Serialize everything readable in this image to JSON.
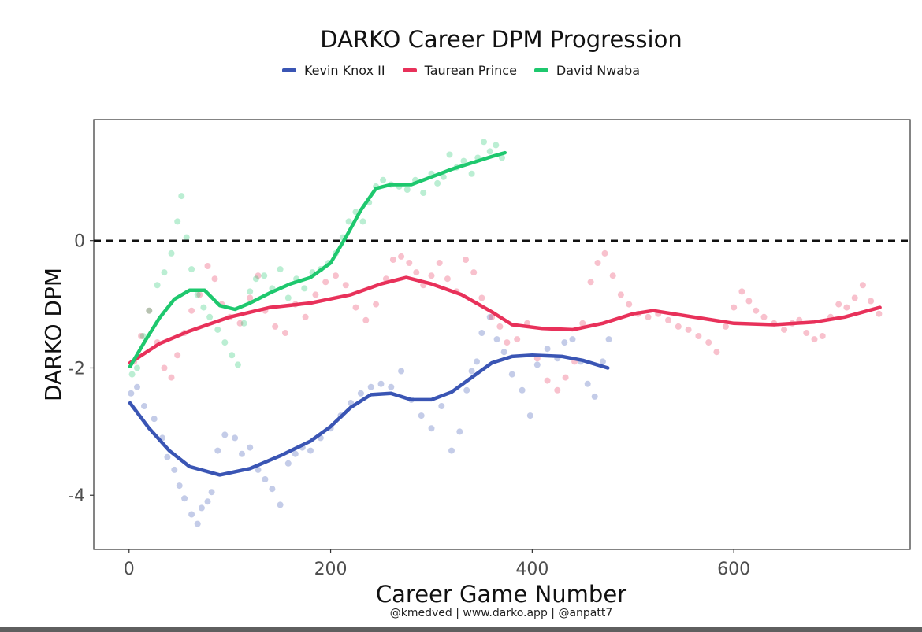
{
  "chart_data": {
    "type": "scatter",
    "title": "DARKO Career DPM Progression",
    "xlabel": "Career Game Number",
    "ylabel": "DARKO DPM",
    "caption": "@kmedved | www.darko.app | @anpatt7",
    "xlim": [
      -35,
      775
    ],
    "ylim": [
      -4.85,
      1.9
    ],
    "x_ticks": [
      0,
      200,
      400,
      600
    ],
    "x_tick_labels": [
      "0",
      "200",
      "400",
      "600"
    ],
    "y_ticks": [
      -4,
      -2,
      0
    ],
    "y_tick_labels": [
      "-4",
      "-2",
      "0"
    ],
    "reference_line": {
      "y": 0,
      "style": "dashed"
    },
    "legend_position": "top",
    "grid": false,
    "series": [
      {
        "name": "Kevin Knox II",
        "color": "#3a55b4",
        "trend": [
          [
            1,
            -2.55
          ],
          [
            20,
            -2.95
          ],
          [
            40,
            -3.3
          ],
          [
            60,
            -3.55
          ],
          [
            90,
            -3.68
          ],
          [
            120,
            -3.58
          ],
          [
            150,
            -3.38
          ],
          [
            180,
            -3.15
          ],
          [
            200,
            -2.92
          ],
          [
            220,
            -2.62
          ],
          [
            240,
            -2.42
          ],
          [
            260,
            -2.4
          ],
          [
            280,
            -2.5
          ],
          [
            300,
            -2.5
          ],
          [
            320,
            -2.38
          ],
          [
            340,
            -2.15
          ],
          [
            360,
            -1.92
          ],
          [
            380,
            -1.82
          ],
          [
            400,
            -1.8
          ],
          [
            430,
            -1.82
          ],
          [
            450,
            -1.88
          ],
          [
            475,
            -2.0
          ]
        ],
        "points": [
          [
            2,
            -2.4
          ],
          [
            8,
            -2.3
          ],
          [
            15,
            -2.6
          ],
          [
            25,
            -2.8
          ],
          [
            33,
            -3.1
          ],
          [
            38,
            -3.4
          ],
          [
            45,
            -3.6
          ],
          [
            50,
            -3.85
          ],
          [
            55,
            -4.05
          ],
          [
            62,
            -4.3
          ],
          [
            68,
            -4.45
          ],
          [
            72,
            -4.2
          ],
          [
            78,
            -4.1
          ],
          [
            82,
            -3.95
          ],
          [
            88,
            -3.3
          ],
          [
            95,
            -3.05
          ],
          [
            105,
            -3.1
          ],
          [
            112,
            -3.35
          ],
          [
            120,
            -3.25
          ],
          [
            128,
            -3.6
          ],
          [
            135,
            -3.75
          ],
          [
            142,
            -3.9
          ],
          [
            150,
            -4.15
          ],
          [
            158,
            -3.5
          ],
          [
            165,
            -3.35
          ],
          [
            172,
            -3.25
          ],
          [
            180,
            -3.3
          ],
          [
            190,
            -3.1
          ],
          [
            200,
            -2.95
          ],
          [
            210,
            -2.75
          ],
          [
            220,
            -2.55
          ],
          [
            230,
            -2.4
          ],
          [
            240,
            -2.3
          ],
          [
            250,
            -2.25
          ],
          [
            260,
            -2.3
          ],
          [
            270,
            -2.05
          ],
          [
            280,
            -2.5
          ],
          [
            290,
            -2.75
          ],
          [
            300,
            -2.95
          ],
          [
            310,
            -2.6
          ],
          [
            320,
            -3.3
          ],
          [
            328,
            -3.0
          ],
          [
            335,
            -2.35
          ],
          [
            340,
            -2.05
          ],
          [
            345,
            -1.9
          ],
          [
            350,
            -1.45
          ],
          [
            358,
            -1.2
          ],
          [
            365,
            -1.55
          ],
          [
            372,
            -1.75
          ],
          [
            380,
            -2.1
          ],
          [
            390,
            -2.35
          ],
          [
            398,
            -2.75
          ],
          [
            405,
            -1.95
          ],
          [
            415,
            -1.7
          ],
          [
            425,
            -1.85
          ],
          [
            432,
            -1.6
          ],
          [
            440,
            -1.55
          ],
          [
            448,
            -1.9
          ],
          [
            455,
            -2.25
          ],
          [
            462,
            -2.45
          ],
          [
            470,
            -1.9
          ],
          [
            476,
            -1.55
          ]
        ]
      },
      {
        "name": "Taurean Prince",
        "color": "#e8315a",
        "trend": [
          [
            1,
            -1.92
          ],
          [
            30,
            -1.62
          ],
          [
            60,
            -1.42
          ],
          [
            100,
            -1.2
          ],
          [
            140,
            -1.05
          ],
          [
            180,
            -0.98
          ],
          [
            220,
            -0.85
          ],
          [
            250,
            -0.68
          ],
          [
            275,
            -0.58
          ],
          [
            300,
            -0.68
          ],
          [
            330,
            -0.85
          ],
          [
            360,
            -1.12
          ],
          [
            380,
            -1.32
          ],
          [
            410,
            -1.38
          ],
          [
            440,
            -1.4
          ],
          [
            470,
            -1.3
          ],
          [
            500,
            -1.15
          ],
          [
            520,
            -1.1
          ],
          [
            560,
            -1.2
          ],
          [
            600,
            -1.3
          ],
          [
            640,
            -1.32
          ],
          [
            680,
            -1.28
          ],
          [
            710,
            -1.2
          ],
          [
            745,
            -1.05
          ]
        ],
        "points": [
          [
            5,
            -1.9
          ],
          [
            12,
            -1.5
          ],
          [
            20,
            -1.1
          ],
          [
            28,
            -1.6
          ],
          [
            35,
            -2.0
          ],
          [
            42,
            -2.15
          ],
          [
            48,
            -1.8
          ],
          [
            55,
            -1.45
          ],
          [
            62,
            -1.1
          ],
          [
            70,
            -0.85
          ],
          [
            78,
            -0.4
          ],
          [
            85,
            -0.6
          ],
          [
            92,
            -1.0
          ],
          [
            100,
            -1.2
          ],
          [
            110,
            -1.3
          ],
          [
            120,
            -0.9
          ],
          [
            128,
            -0.55
          ],
          [
            135,
            -1.1
          ],
          [
            145,
            -1.35
          ],
          [
            155,
            -1.45
          ],
          [
            165,
            -1.0
          ],
          [
            175,
            -1.2
          ],
          [
            185,
            -0.85
          ],
          [
            195,
            -0.65
          ],
          [
            205,
            -0.55
          ],
          [
            215,
            -0.7
          ],
          [
            225,
            -1.05
          ],
          [
            235,
            -1.25
          ],
          [
            245,
            -1.0
          ],
          [
            255,
            -0.6
          ],
          [
            262,
            -0.3
          ],
          [
            270,
            -0.25
          ],
          [
            278,
            -0.35
          ],
          [
            285,
            -0.5
          ],
          [
            292,
            -0.7
          ],
          [
            300,
            -0.55
          ],
          [
            308,
            -0.35
          ],
          [
            316,
            -0.6
          ],
          [
            325,
            -0.8
          ],
          [
            334,
            -0.3
          ],
          [
            342,
            -0.5
          ],
          [
            350,
            -0.9
          ],
          [
            360,
            -1.2
          ],
          [
            368,
            -1.35
          ],
          [
            375,
            -1.6
          ],
          [
            385,
            -1.55
          ],
          [
            395,
            -1.3
          ],
          [
            405,
            -1.85
          ],
          [
            415,
            -2.2
          ],
          [
            425,
            -2.35
          ],
          [
            433,
            -2.15
          ],
          [
            442,
            -1.9
          ],
          [
            450,
            -1.3
          ],
          [
            458,
            -0.65
          ],
          [
            465,
            -0.35
          ],
          [
            472,
            -0.2
          ],
          [
            480,
            -0.55
          ],
          [
            488,
            -0.85
          ],
          [
            496,
            -1.0
          ],
          [
            505,
            -1.15
          ],
          [
            515,
            -1.2
          ],
          [
            525,
            -1.15
          ],
          [
            535,
            -1.25
          ],
          [
            545,
            -1.35
          ],
          [
            555,
            -1.4
          ],
          [
            565,
            -1.5
          ],
          [
            575,
            -1.6
          ],
          [
            583,
            -1.75
          ],
          [
            592,
            -1.35
          ],
          [
            600,
            -1.05
          ],
          [
            608,
            -0.8
          ],
          [
            615,
            -0.95
          ],
          [
            622,
            -1.1
          ],
          [
            630,
            -1.2
          ],
          [
            640,
            -1.3
          ],
          [
            650,
            -1.4
          ],
          [
            658,
            -1.3
          ],
          [
            665,
            -1.25
          ],
          [
            672,
            -1.45
          ],
          [
            680,
            -1.55
          ],
          [
            688,
            -1.5
          ],
          [
            696,
            -1.2
          ],
          [
            704,
            -1.0
          ],
          [
            712,
            -1.05
          ],
          [
            720,
            -0.9
          ],
          [
            728,
            -0.7
          ],
          [
            736,
            -0.95
          ],
          [
            744,
            -1.15
          ]
        ]
      },
      {
        "name": "David Nwaba",
        "color": "#1ec86e",
        "trend": [
          [
            1,
            -1.98
          ],
          [
            15,
            -1.6
          ],
          [
            30,
            -1.22
          ],
          [
            45,
            -0.92
          ],
          [
            60,
            -0.78
          ],
          [
            75,
            -0.78
          ],
          [
            90,
            -1.02
          ],
          [
            105,
            -1.08
          ],
          [
            120,
            -0.98
          ],
          [
            140,
            -0.82
          ],
          [
            160,
            -0.68
          ],
          [
            180,
            -0.58
          ],
          [
            200,
            -0.35
          ],
          [
            215,
            0.05
          ],
          [
            230,
            0.48
          ],
          [
            245,
            0.82
          ],
          [
            260,
            0.88
          ],
          [
            280,
            0.88
          ],
          [
            300,
            1.0
          ],
          [
            320,
            1.12
          ],
          [
            340,
            1.22
          ],
          [
            360,
            1.32
          ],
          [
            373,
            1.38
          ]
        ],
        "points": [
          [
            3,
            -2.1
          ],
          [
            8,
            -2.0
          ],
          [
            14,
            -1.5
          ],
          [
            20,
            -1.1
          ],
          [
            28,
            -0.7
          ],
          [
            35,
            -0.5
          ],
          [
            42,
            -0.2
          ],
          [
            48,
            0.3
          ],
          [
            52,
            0.7
          ],
          [
            57,
            0.05
          ],
          [
            62,
            -0.45
          ],
          [
            68,
            -0.85
          ],
          [
            74,
            -1.05
          ],
          [
            80,
            -1.2
          ],
          [
            88,
            -1.4
          ],
          [
            95,
            -1.6
          ],
          [
            102,
            -1.8
          ],
          [
            108,
            -1.95
          ],
          [
            114,
            -1.3
          ],
          [
            120,
            -0.8
          ],
          [
            126,
            -0.6
          ],
          [
            134,
            -0.55
          ],
          [
            142,
            -0.75
          ],
          [
            150,
            -0.45
          ],
          [
            158,
            -0.9
          ],
          [
            166,
            -0.6
          ],
          [
            174,
            -0.75
          ],
          [
            182,
            -0.5
          ],
          [
            190,
            -0.45
          ],
          [
            198,
            -0.35
          ],
          [
            205,
            -0.2
          ],
          [
            212,
            0.05
          ],
          [
            218,
            0.3
          ],
          [
            225,
            0.45
          ],
          [
            232,
            0.3
          ],
          [
            238,
            0.6
          ],
          [
            245,
            0.85
          ],
          [
            252,
            0.95
          ],
          [
            260,
            0.88
          ],
          [
            268,
            0.85
          ],
          [
            276,
            0.8
          ],
          [
            284,
            0.95
          ],
          [
            292,
            0.75
          ],
          [
            300,
            1.05
          ],
          [
            306,
            0.9
          ],
          [
            312,
            1.0
          ],
          [
            318,
            1.35
          ],
          [
            325,
            1.15
          ],
          [
            332,
            1.25
          ],
          [
            340,
            1.05
          ],
          [
            346,
            1.3
          ],
          [
            352,
            1.55
          ],
          [
            358,
            1.4
          ],
          [
            364,
            1.5
          ],
          [
            370,
            1.3
          ]
        ]
      }
    ]
  }
}
